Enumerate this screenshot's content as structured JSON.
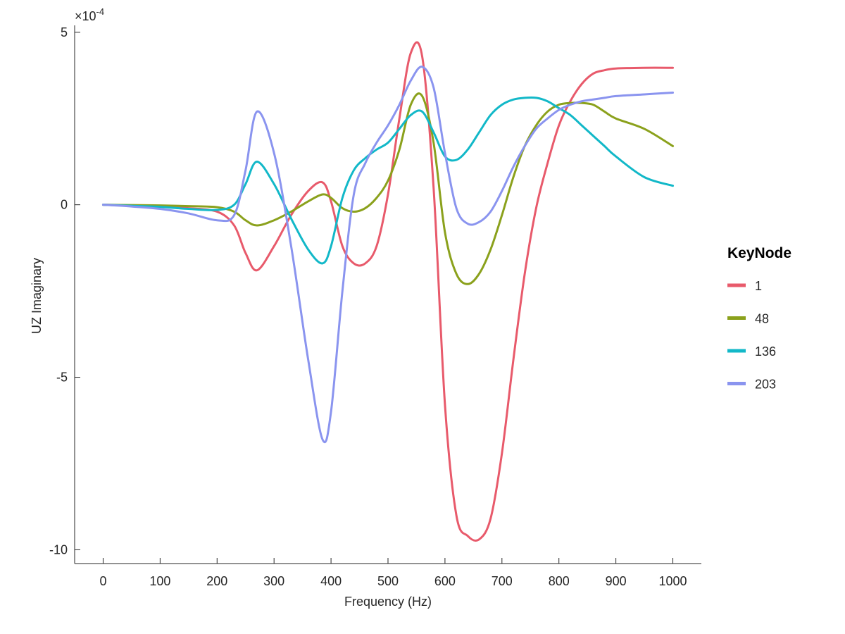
{
  "chart_data": {
    "type": "line",
    "title": "",
    "xlabel": "Frequency (Hz)",
    "ylabel": "UZ Imaginary",
    "exponent_prefix": "×10",
    "exponent_power": "-4",
    "xlim": [
      -50,
      1050
    ],
    "ylim": [
      -10.4,
      5.2
    ],
    "xticks": [
      0,
      100,
      200,
      300,
      400,
      500,
      600,
      700,
      800,
      900,
      1000
    ],
    "xtick_labels": [
      "0",
      "100",
      "200",
      "300",
      "400",
      "500",
      "600",
      "700",
      "800",
      "900",
      "1000"
    ],
    "yticks": [
      -10,
      -5,
      0,
      5
    ],
    "ytick_labels": [
      "-10",
      "-5",
      "0",
      "5"
    ],
    "grid": false,
    "legend_title": "KeyNode",
    "legend_position": "right",
    "x": [
      0,
      50,
      100,
      150,
      200,
      230,
      250,
      270,
      300,
      330,
      360,
      385,
      400,
      420,
      440,
      460,
      480,
      500,
      520,
      540,
      560,
      580,
      600,
      620,
      640,
      660,
      680,
      700,
      720,
      740,
      760,
      780,
      800,
      820,
      840,
      860,
      880,
      900,
      950,
      1000
    ],
    "series": [
      {
        "name": "1",
        "color": "#e85a6b",
        "values": [
          0,
          -0.02,
          -0.05,
          -0.1,
          -0.2,
          -0.6,
          -1.4,
          -1.9,
          -1.2,
          -0.3,
          0.4,
          0.65,
          0.1,
          -1.2,
          -1.7,
          -1.7,
          -1.2,
          0.3,
          2.5,
          4.4,
          4.3,
          0.5,
          -5.8,
          -9.0,
          -9.6,
          -9.7,
          -9.1,
          -7.2,
          -4.5,
          -2.0,
          -0.1,
          1.2,
          2.3,
          3.0,
          3.5,
          3.8,
          3.9,
          3.95,
          3.97,
          3.97
        ]
      },
      {
        "name": "48",
        "color": "#8ba11c",
        "values": [
          0,
          -0.01,
          -0.02,
          -0.04,
          -0.07,
          -0.2,
          -0.45,
          -0.6,
          -0.45,
          -0.2,
          0.1,
          0.3,
          0.2,
          -0.1,
          -0.2,
          -0.1,
          0.2,
          0.7,
          1.6,
          2.9,
          3.15,
          1.8,
          -0.8,
          -2.0,
          -2.3,
          -2.0,
          -1.3,
          -0.3,
          0.8,
          1.7,
          2.3,
          2.7,
          2.9,
          2.95,
          2.95,
          2.9,
          2.7,
          2.5,
          2.2,
          1.7
        ]
      },
      {
        "name": "136",
        "color": "#12b8c8",
        "values": [
          0,
          -0.03,
          -0.06,
          -0.12,
          -0.15,
          0.0,
          0.6,
          1.25,
          0.6,
          -0.4,
          -1.3,
          -1.7,
          -1.2,
          0.2,
          1.0,
          1.35,
          1.6,
          1.8,
          2.2,
          2.6,
          2.7,
          2.1,
          1.4,
          1.3,
          1.6,
          2.1,
          2.6,
          2.9,
          3.05,
          3.1,
          3.1,
          3.0,
          2.8,
          2.6,
          2.3,
          2.0,
          1.7,
          1.4,
          0.8,
          0.55
        ]
      },
      {
        "name": "203",
        "color": "#8a94ef",
        "values": [
          0,
          -0.05,
          -0.12,
          -0.25,
          -0.45,
          -0.3,
          1.0,
          2.7,
          1.5,
          -1.2,
          -4.5,
          -6.8,
          -6.0,
          -2.5,
          0.3,
          1.2,
          1.8,
          2.3,
          2.9,
          3.6,
          4.0,
          3.4,
          1.5,
          -0.1,
          -0.55,
          -0.5,
          -0.2,
          0.4,
          1.1,
          1.7,
          2.2,
          2.5,
          2.75,
          2.9,
          3.0,
          3.05,
          3.1,
          3.15,
          3.2,
          3.25
        ]
      }
    ]
  }
}
